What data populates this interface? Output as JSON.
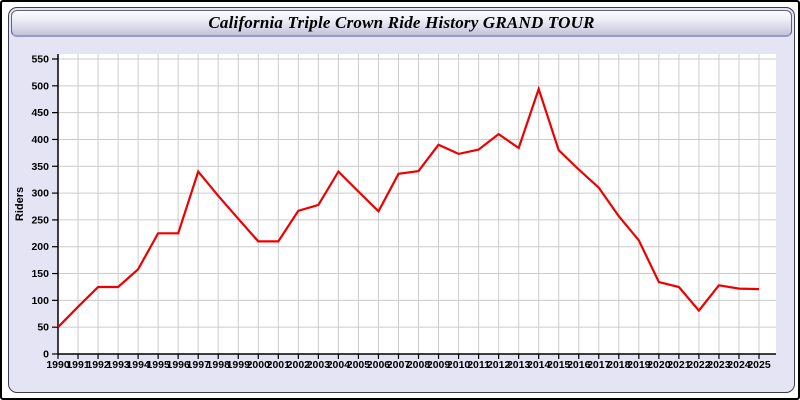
{
  "window": {
    "title": "California Triple Crown Ride History GRAND TOUR"
  },
  "chart_data": {
    "type": "line",
    "title": "California Triple Crown Ride History GRAND TOUR",
    "xlabel": "",
    "ylabel": "Riders",
    "categories": [
      1990,
      1991,
      1992,
      1993,
      1994,
      1995,
      1996,
      1997,
      1998,
      1999,
      2000,
      2001,
      2002,
      2003,
      2004,
      2005,
      2006,
      2007,
      2008,
      2009,
      2010,
      2011,
      2012,
      2013,
      2014,
      2015,
      2016,
      2017,
      2018,
      2019,
      2020,
      2021,
      2022,
      2023,
      2024,
      2025
    ],
    "series": [
      {
        "name": "Riders",
        "color": "#ee0000",
        "values": [
          50,
          88,
          125,
          125,
          158,
          225,
          225,
          340,
          295,
          252,
          210,
          210,
          267,
          278,
          340,
          303,
          266,
          336,
          341,
          390,
          373,
          381,
          410,
          384,
          494,
          380,
          344,
          310,
          257,
          212,
          134,
          125,
          81,
          128,
          122,
          121
        ]
      }
    ],
    "ylim": [
      0,
      550
    ],
    "ytick_step": 50,
    "grid": true,
    "legend_position": "none"
  },
  "colors": {
    "line": "#ee0000",
    "panel_background": "#e4e4f4",
    "plot_background": "#ffffff",
    "grid_line": "#cccccc",
    "axis": "#000000"
  }
}
